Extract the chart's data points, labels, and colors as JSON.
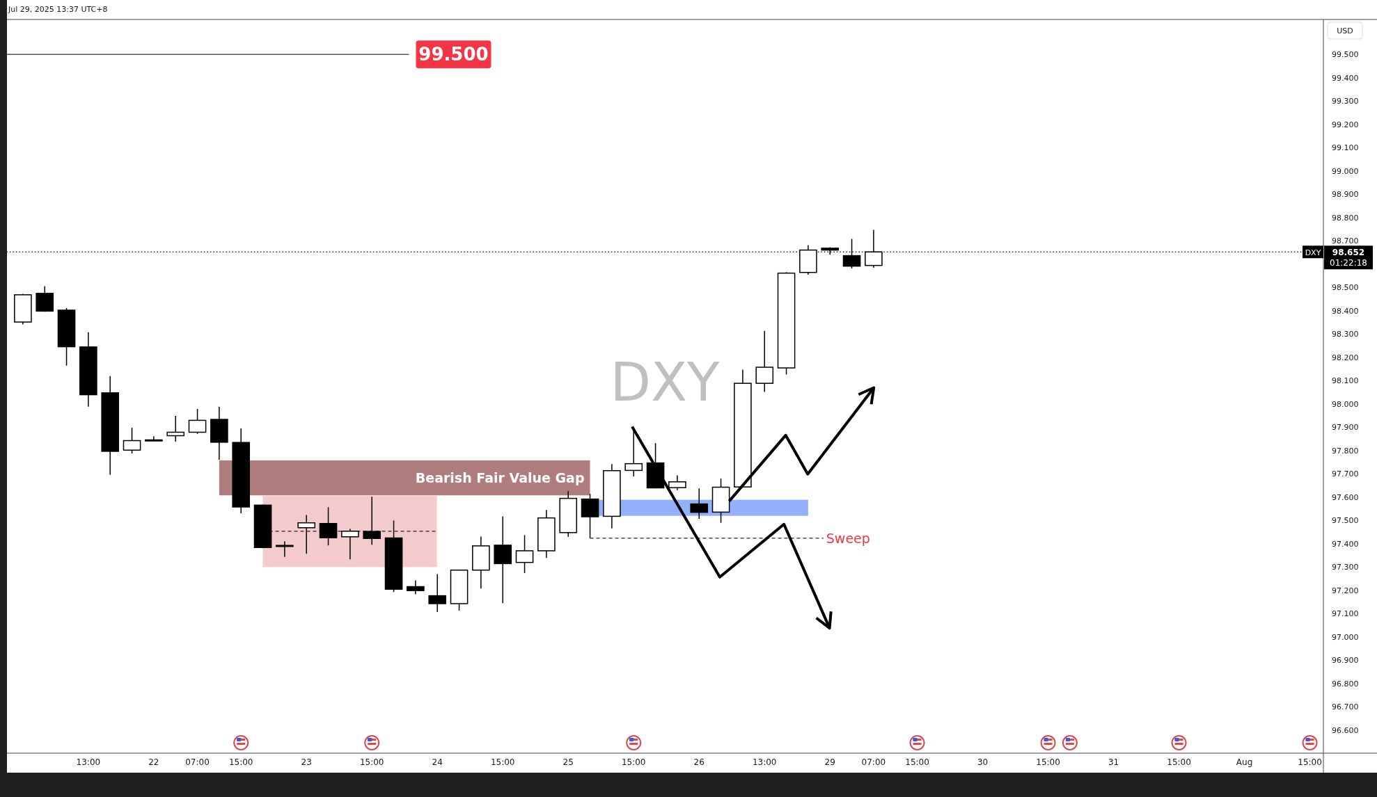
{
  "chart_data": {
    "type": "candlestick",
    "title": "DXY",
    "ylabel": "USD",
    "categories": [
      null,
      null,
      null,
      "13:00",
      null,
      null,
      "22",
      null,
      "07:00",
      null,
      "15:00",
      null,
      null,
      "23",
      null,
      null,
      "15:00",
      null,
      null,
      "24",
      null,
      null,
      "15:00",
      null,
      null,
      "25",
      null,
      null,
      "15:00",
      null,
      null,
      "26",
      null,
      null,
      "13:00",
      null,
      null,
      "29",
      null,
      "07:00",
      null,
      "15:00",
      null,
      null,
      "30",
      null,
      null,
      "15:00",
      null,
      null,
      "31",
      null,
      null,
      "15:00",
      null,
      null,
      "Aug",
      null,
      null,
      "15:00"
    ],
    "ohlc": [
      [
        98.351,
        98.472,
        98.341,
        98.468
      ],
      [
        98.474,
        98.505,
        98.395,
        98.398
      ],
      [
        98.402,
        98.411,
        98.164,
        98.245
      ],
      [
        98.244,
        98.307,
        97.988,
        98.039
      ],
      [
        98.047,
        98.119,
        97.695,
        97.796
      ],
      [
        97.801,
        97.897,
        97.787,
        97.842
      ],
      [
        97.843,
        97.861,
        97.839,
        97.845
      ],
      [
        97.863,
        97.948,
        97.838,
        97.878
      ],
      [
        97.878,
        97.978,
        97.871,
        97.929
      ],
      [
        97.933,
        97.987,
        97.76,
        97.835
      ],
      [
        97.834,
        97.894,
        97.53,
        97.557
      ],
      [
        97.565,
        97.567,
        97.38,
        97.383
      ],
      [
        97.39,
        97.41,
        97.343,
        97.392
      ],
      [
        97.468,
        97.523,
        97.356,
        97.489
      ],
      [
        97.486,
        97.556,
        97.392,
        97.425
      ],
      [
        97.429,
        97.463,
        97.332,
        97.453
      ],
      [
        97.452,
        97.601,
        97.395,
        97.422
      ],
      [
        97.424,
        97.499,
        97.192,
        97.204
      ],
      [
        97.215,
        97.242,
        97.182,
        97.198
      ],
      [
        97.176,
        97.269,
        97.106,
        97.142
      ],
      [
        97.142,
        97.286,
        97.112,
        97.286
      ],
      [
        97.286,
        97.43,
        97.207,
        97.39
      ],
      [
        97.393,
        97.517,
        97.144,
        97.314
      ],
      [
        97.319,
        97.436,
        97.273,
        97.369
      ],
      [
        97.369,
        97.544,
        97.338,
        97.51
      ],
      [
        97.447,
        97.625,
        97.429,
        97.594
      ],
      [
        97.591,
        97.613,
        97.423,
        97.515
      ],
      [
        97.517,
        97.741,
        97.465,
        97.713
      ],
      [
        97.714,
        97.895,
        97.688,
        97.743
      ],
      [
        97.746,
        97.831,
        97.637,
        97.639
      ],
      [
        97.64,
        97.693,
        97.629,
        97.665
      ],
      [
        97.57,
        97.637,
        97.506,
        97.534
      ],
      [
        97.535,
        97.679,
        97.489,
        97.642
      ],
      [
        97.643,
        98.147,
        97.643,
        98.088
      ],
      [
        98.088,
        98.313,
        98.051,
        98.157
      ],
      [
        98.154,
        98.565,
        98.126,
        98.561
      ],
      [
        98.564,
        98.681,
        98.554,
        98.66
      ],
      [
        98.668,
        98.672,
        98.64,
        98.66
      ],
      [
        98.636,
        98.708,
        98.581,
        98.591
      ],
      [
        98.594,
        98.747,
        98.584,
        98.652
      ],
      null,
      null,
      null,
      null,
      null,
      null,
      null,
      null,
      null,
      null,
      null,
      null,
      null,
      null,
      null,
      null,
      null,
      null,
      null,
      null
    ],
    "ylim": [
      96.5,
      99.65
    ],
    "yticks": [
      {
        "value": 96.6,
        "label": "96.600"
      },
      {
        "value": 96.7,
        "label": "96.700"
      },
      {
        "value": 96.8,
        "label": "96.800"
      },
      {
        "value": 96.9,
        "label": "96.900"
      },
      {
        "value": 97.0,
        "label": "97.000"
      },
      {
        "value": 97.1,
        "label": "97.100"
      },
      {
        "value": 97.2,
        "label": "97.200"
      },
      {
        "value": 97.3,
        "label": "97.300"
      },
      {
        "value": 97.4,
        "label": "97.400"
      },
      {
        "value": 97.5,
        "label": "97.500"
      },
      {
        "value": 97.6,
        "label": "97.600"
      },
      {
        "value": 97.7,
        "label": "97.700"
      },
      {
        "value": 97.8,
        "label": "97.800"
      },
      {
        "value": 97.9,
        "label": "97.900"
      },
      {
        "value": 98.0,
        "label": "98.000"
      },
      {
        "value": 98.1,
        "label": "98.100"
      },
      {
        "value": 98.2,
        "label": "98.200"
      },
      {
        "value": 98.3,
        "label": "98.300"
      },
      {
        "value": 98.4,
        "label": "98.400"
      },
      {
        "value": 98.5,
        "label": "98.500"
      },
      {
        "value": 98.7,
        "label": "98.700"
      },
      {
        "value": 98.8,
        "label": "98.800"
      },
      {
        "value": 98.9,
        "label": "98.900"
      },
      {
        "value": 99.0,
        "label": "99.000"
      },
      {
        "value": 99.1,
        "label": "99.100"
      },
      {
        "value": 99.2,
        "label": "99.200"
      },
      {
        "value": 99.3,
        "label": "99.300"
      },
      {
        "value": 99.4,
        "label": "99.400"
      },
      {
        "value": 99.5,
        "label": "99.500"
      }
    ],
    "ref_lines": [
      {
        "axis": "y",
        "value": 99.5,
        "label": "99.500"
      },
      {
        "axis": "y",
        "value": 98.652,
        "label": "98.652",
        "line_style": "dotted"
      },
      {
        "axis": "y",
        "value": 97.423,
        "label": "Sweep",
        "line_style": "dashed"
      },
      {
        "axis": "y",
        "value": 97.453,
        "line_style": "dashed"
      }
    ],
    "bands": [
      {
        "axis": "y",
        "from": 97.607,
        "to": 97.757,
        "label": "Bearish Fair Value Gap",
        "color": "#b07d7f"
      },
      {
        "axis": "y",
        "from": 97.299,
        "to": 97.606,
        "color": "#f3cbcc"
      },
      {
        "axis": "y",
        "from": 97.519,
        "to": 97.588,
        "color": "#94b0fb"
      }
    ],
    "annotations": [
      "Jul 29, 2025 13:37 UTC+8",
      "DXY",
      "01:22:18"
    ],
    "grid": false
  }
}
